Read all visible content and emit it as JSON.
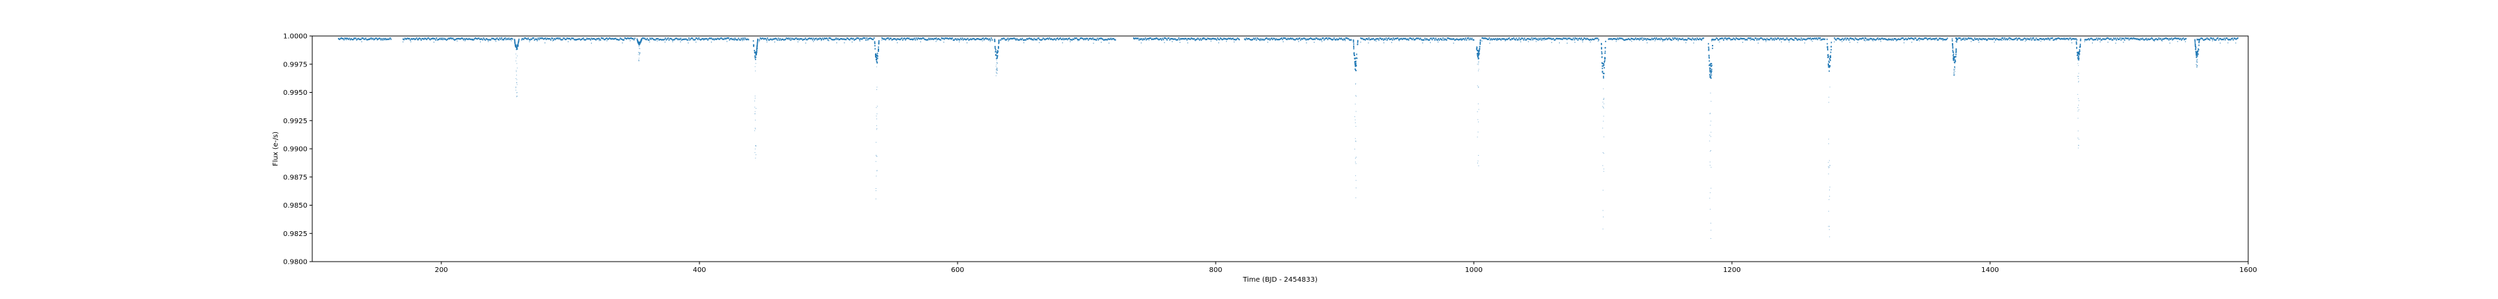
{
  "chart_data": {
    "type": "scatter",
    "title": "",
    "xlabel": "Time (BJD - 2454833)",
    "ylabel": "Flux (e-/s)",
    "xlim": [
      100,
      1600
    ],
    "ylim": [
      0.98,
      1.0
    ],
    "xticks": [
      200,
      400,
      600,
      800,
      1000,
      1200,
      1400,
      1600
    ],
    "xtick_labels": [
      "200",
      "400",
      "600",
      "800",
      "1000",
      "1200",
      "1400",
      "1600"
    ],
    "yticks": [
      0.98,
      0.9825,
      0.985,
      0.9875,
      0.99,
      0.9925,
      0.995,
      0.9975,
      1.0
    ],
    "ytick_labels": [
      "0.9800",
      "0.9825",
      "0.9850",
      "0.9875",
      "0.9900",
      "0.9925",
      "0.9950",
      "0.9975",
      "1.0000"
    ],
    "grid": false,
    "legend": "none",
    "point_color": "#1f77b4",
    "baseline": 0.9998,
    "observation_segments": [
      [
        120,
        161
      ],
      [
        170,
        255
      ],
      [
        262,
        350
      ],
      [
        355,
        438
      ],
      [
        446,
        535
      ],
      [
        541,
        627
      ],
      [
        633,
        722
      ],
      [
        736,
        818
      ],
      [
        822,
        905
      ],
      [
        912,
        1000
      ],
      [
        1006,
        1097
      ],
      [
        1104,
        1178
      ],
      [
        1184,
        1272
      ],
      [
        1279,
        1367
      ],
      [
        1373,
        1467
      ],
      [
        1473,
        1552
      ],
      [
        1560,
        1592
      ]
    ],
    "dips": [
      {
        "time": 258,
        "depth_flux": 0.9988,
        "scatter_flux": 0.9945
      },
      {
        "time": 353,
        "depth_flux": 0.9993,
        "scatter_flux": 0.9978
      },
      {
        "time": 443,
        "depth_flux": 0.9979,
        "scatter_flux": 0.9885
      },
      {
        "time": 537,
        "depth_flux": 0.9975,
        "scatter_flux": 0.9855
      },
      {
        "time": 630,
        "depth_flux": 0.998,
        "scatter_flux": 0.9965
      },
      {
        "time": 908,
        "depth_flux": 0.9969,
        "scatter_flux": 0.985
      },
      {
        "time": 1003,
        "depth_flux": 0.998,
        "scatter_flux": 0.988
      },
      {
        "time": 1100,
        "depth_flux": 0.9962,
        "scatter_flux": 0.9825
      },
      {
        "time": 1183,
        "depth_flux": 0.996,
        "scatter_flux": 0.9815
      },
      {
        "time": 1275,
        "depth_flux": 0.9969,
        "scatter_flux": 0.9822
      },
      {
        "time": 1372,
        "depth_flux": 0.9973,
        "scatter_flux": 0.9965
      },
      {
        "time": 1468,
        "depth_flux": 0.9978,
        "scatter_flux": 0.9895
      },
      {
        "time": 1560,
        "depth_flux": 0.998,
        "scatter_flux": 0.9972
      }
    ]
  }
}
